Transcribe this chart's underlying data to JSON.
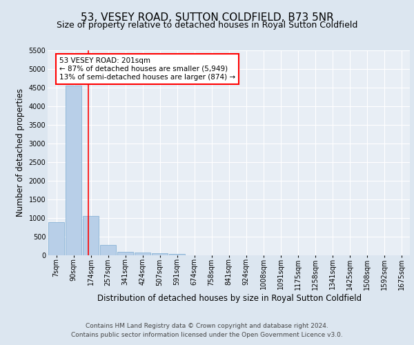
{
  "title": "53, VESEY ROAD, SUTTON COLDFIELD, B73 5NR",
  "subtitle": "Size of property relative to detached houses in Royal Sutton Coldfield",
  "xlabel": "Distribution of detached houses by size in Royal Sutton Coldfield",
  "ylabel": "Number of detached properties",
  "footer_line1": "Contains HM Land Registry data © Crown copyright and database right 2024.",
  "footer_line2": "Contains public sector information licensed under the Open Government Licence v3.0.",
  "bar_labels": [
    "7sqm",
    "90sqm",
    "174sqm",
    "257sqm",
    "341sqm",
    "424sqm",
    "507sqm",
    "591sqm",
    "674sqm",
    "758sqm",
    "841sqm",
    "924sqm",
    "1008sqm",
    "1091sqm",
    "1175sqm",
    "1258sqm",
    "1341sqm",
    "1425sqm",
    "1508sqm",
    "1592sqm",
    "1675sqm"
  ],
  "bar_values": [
    880,
    4540,
    1060,
    270,
    90,
    80,
    50,
    30,
    0,
    0,
    0,
    0,
    0,
    0,
    0,
    0,
    0,
    0,
    0,
    0,
    0
  ],
  "bar_color": "#b8cfe8",
  "bar_edgecolor": "#7aaad0",
  "vline_x": 1.85,
  "vline_color": "red",
  "annotation_text": "53 VESEY ROAD: 201sqm\n← 87% of detached houses are smaller (5,949)\n13% of semi-detached houses are larger (874) →",
  "annotation_box_facecolor": "white",
  "annotation_box_edgecolor": "red",
  "ylim": [
    0,
    5500
  ],
  "yticks": [
    0,
    500,
    1000,
    1500,
    2000,
    2500,
    3000,
    3500,
    4000,
    4500,
    5000,
    5500
  ],
  "bg_color": "#dce6f0",
  "plot_bg_color": "#e8eef5",
  "grid_color": "white",
  "title_fontsize": 11,
  "subtitle_fontsize": 9,
  "axis_label_fontsize": 8.5,
  "tick_fontsize": 7,
  "footer_fontsize": 6.5,
  "annotation_fontsize": 7.5
}
